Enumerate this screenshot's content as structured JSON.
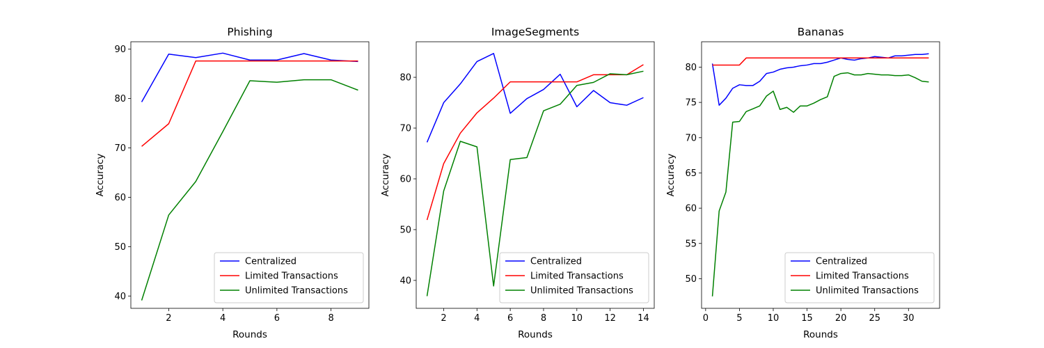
{
  "chart_data": [
    {
      "type": "line",
      "title": "Phishing",
      "xlabel": "Rounds",
      "ylabel": "Accuracy",
      "xlim": [
        0.6,
        9.4
      ],
      "ylim": [
        37.5,
        91.5
      ],
      "xticks": [
        2,
        4,
        6,
        8
      ],
      "yticks": [
        40,
        50,
        60,
        70,
        80,
        90
      ],
      "legend_position": "lower-right",
      "series": [
        {
          "name": "Centralized",
          "color": "#0000ff",
          "x": [
            1,
            2,
            3,
            4,
            5,
            6,
            7,
            8,
            9
          ],
          "y": [
            79.3,
            89.0,
            88.3,
            89.2,
            87.8,
            87.8,
            89.1,
            87.8,
            87.5
          ]
        },
        {
          "name": "Limited Transactions",
          "color": "#ff0000",
          "x": [
            1,
            2,
            3,
            4,
            5,
            6,
            7,
            8,
            9
          ],
          "y": [
            70.3,
            74.9,
            87.6,
            87.6,
            87.6,
            87.6,
            87.6,
            87.6,
            87.6
          ]
        },
        {
          "name": "Unlimited Transactions",
          "color": "#008000",
          "x": [
            1,
            2,
            3,
            4,
            5,
            6,
            7,
            8,
            9
          ],
          "y": [
            39.1,
            56.4,
            63.2,
            73.3,
            83.6,
            83.3,
            83.8,
            83.8,
            81.7
          ]
        }
      ]
    },
    {
      "type": "line",
      "title": "ImageSegments",
      "xlabel": "Rounds",
      "ylabel": "Accuracy",
      "xlim": [
        0.35,
        14.65
      ],
      "ylim": [
        34.5,
        87.0
      ],
      "xticks": [
        2,
        4,
        6,
        8,
        10,
        12,
        14
      ],
      "yticks": [
        40,
        50,
        60,
        70,
        80
      ],
      "legend_position": "lower-right",
      "series": [
        {
          "name": "Centralized",
          "color": "#0000ff",
          "x": [
            1,
            2,
            3,
            4,
            5,
            6,
            7,
            8,
            9,
            10,
            11,
            12,
            13,
            14
          ],
          "y": [
            67.2,
            75.0,
            78.7,
            83.1,
            84.7,
            72.9,
            75.8,
            77.6,
            80.6,
            74.2,
            77.4,
            75.0,
            74.5,
            76.0
          ]
        },
        {
          "name": "Limited Transactions",
          "color": "#ff0000",
          "x": [
            1,
            2,
            3,
            4,
            5,
            6,
            7,
            8,
            9,
            10,
            11,
            12,
            13,
            14
          ],
          "y": [
            51.9,
            63.0,
            69.0,
            73.0,
            75.9,
            79.1,
            79.1,
            79.1,
            79.1,
            79.1,
            80.5,
            80.5,
            80.5,
            82.5
          ]
        },
        {
          "name": "Unlimited Transactions",
          "color": "#008000",
          "x": [
            1,
            2,
            3,
            4,
            5,
            6,
            7,
            8,
            9,
            10,
            11,
            12,
            13,
            14
          ],
          "y": [
            36.9,
            57.6,
            67.4,
            66.3,
            38.9,
            63.8,
            64.2,
            73.4,
            74.7,
            78.4,
            79.0,
            80.7,
            80.5,
            81.2
          ]
        }
      ]
    },
    {
      "type": "line",
      "title": "Bananas",
      "xlabel": "Rounds",
      "ylabel": "Accuracy",
      "xlim": [
        -0.6,
        34.6
      ],
      "ylim": [
        45.8,
        83.6
      ],
      "xticks": [
        0,
        5,
        10,
        15,
        20,
        25,
        30
      ],
      "yticks": [
        50,
        55,
        60,
        65,
        70,
        75,
        80
      ],
      "legend_position": "lower-right",
      "series": [
        {
          "name": "Centralized",
          "color": "#0000ff",
          "x": [
            1,
            2,
            3,
            4,
            5,
            6,
            7,
            8,
            9,
            10,
            11,
            12,
            13,
            14,
            15,
            16,
            17,
            18,
            19,
            20,
            21,
            22,
            23,
            24,
            25,
            26,
            27,
            28,
            29,
            30,
            31,
            32,
            33
          ],
          "y": [
            80.5,
            74.6,
            75.6,
            77.0,
            77.5,
            77.4,
            77.4,
            78.0,
            79.1,
            79.3,
            79.7,
            79.9,
            80.0,
            80.2,
            80.3,
            80.5,
            80.5,
            80.7,
            81.0,
            81.3,
            81.1,
            81.0,
            81.2,
            81.3,
            81.5,
            81.4,
            81.3,
            81.6,
            81.6,
            81.7,
            81.8,
            81.8,
            81.9
          ]
        },
        {
          "name": "Limited Transactions",
          "color": "#ff0000",
          "x": [
            1,
            2,
            3,
            4,
            5,
            6,
            7,
            8,
            9,
            10,
            11,
            12,
            13,
            14,
            15,
            16,
            17,
            18,
            19,
            20,
            21,
            22,
            23,
            24,
            25,
            26,
            27,
            28,
            29,
            30,
            31,
            32,
            33
          ],
          "y": [
            80.3,
            80.3,
            80.3,
            80.3,
            80.3,
            81.3,
            81.3,
            81.3,
            81.3,
            81.3,
            81.3,
            81.3,
            81.3,
            81.3,
            81.3,
            81.3,
            81.3,
            81.3,
            81.3,
            81.3,
            81.3,
            81.3,
            81.3,
            81.3,
            81.3,
            81.3,
            81.3,
            81.3,
            81.3,
            81.3,
            81.3,
            81.3,
            81.3
          ]
        },
        {
          "name": "Unlimited Transactions",
          "color": "#008000",
          "x": [
            1,
            2,
            3,
            4,
            5,
            6,
            7,
            8,
            9,
            10,
            11,
            12,
            13,
            14,
            15,
            16,
            17,
            18,
            19,
            20,
            21,
            22,
            23,
            24,
            25,
            26,
            27,
            28,
            29,
            30,
            31,
            32,
            33
          ],
          "y": [
            47.5,
            59.6,
            62.3,
            72.2,
            72.3,
            73.7,
            74.1,
            74.5,
            75.9,
            76.6,
            74.0,
            74.3,
            73.6,
            74.5,
            74.5,
            74.9,
            75.4,
            75.8,
            78.7,
            79.1,
            79.2,
            78.9,
            78.9,
            79.1,
            79.0,
            78.9,
            78.9,
            78.8,
            78.8,
            78.9,
            78.5,
            78.0,
            77.9
          ]
        }
      ]
    }
  ]
}
